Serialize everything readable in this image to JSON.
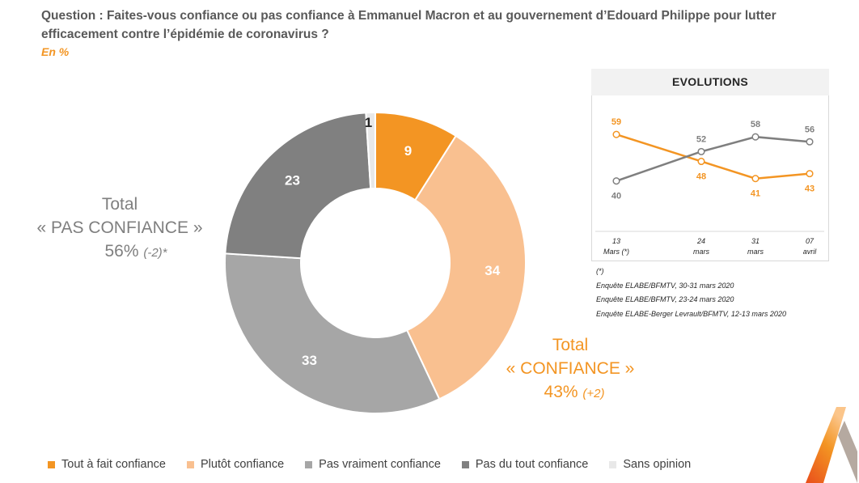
{
  "header": {
    "question": "Question : Faites-vous confiance ou pas confiance à Emmanuel Macron et au gouvernement d’Edouard Philippe pour lutter efficacement contre l’épidémie de coronavirus ?",
    "unit": "En %"
  },
  "totals": {
    "pas_confiance": {
      "line1": "Total",
      "line2": "« PAS CONFIANCE »",
      "pct": "56%",
      "change": "(-2)*"
    },
    "confiance": {
      "line1": "Total",
      "line2": "« CONFIANCE »",
      "pct": "43%",
      "change": "(+2)"
    }
  },
  "evolutions": {
    "title": "EVOLUTIONS",
    "notes": [
      "(*)",
      "Enquête ELABE/BFMTV, 30-31 mars 2020",
      "Enquête ELABE/BFMTV, 23-24 mars 2020",
      "Enquête ELABE-Berger Levrault/BFMTV, 12-13 mars 2020"
    ]
  },
  "legend": [
    {
      "label": "Tout à fait confiance",
      "color": "#f39523"
    },
    {
      "label": "Plutôt confiance",
      "color": "#f9c090"
    },
    {
      "label": "Pas vraiment confiance",
      "color": "#a6a6a6"
    },
    {
      "label": "Pas du tout confiance",
      "color": "#808080"
    },
    {
      "label": "Sans opinion",
      "color": "#e8e8e8"
    }
  ],
  "chart_data": [
    {
      "type": "pie",
      "subtype": "donut",
      "categories": [
        "Tout à fait confiance",
        "Plutôt confiance",
        "Pas vraiment confiance",
        "Pas du tout confiance",
        "Sans opinion"
      ],
      "values": [
        9,
        34,
        33,
        23,
        1
      ],
      "colors": [
        "#f39523",
        "#f9c090",
        "#a6a6a6",
        "#808080",
        "#e8e8e8"
      ],
      "label_colors": [
        "#ffffff",
        "#ffffff",
        "#ffffff",
        "#ffffff",
        "#262626"
      ]
    },
    {
      "type": "line",
      "title": "EVOLUTIONS",
      "categories": [
        [
          "13",
          "Mars (*)"
        ],
        [
          "24",
          "mars"
        ],
        [
          "31",
          "mars"
        ],
        [
          "07",
          "avril"
        ]
      ],
      "series": [
        {
          "values": [
            59,
            48,
            41,
            43
          ],
          "color": "#f39523"
        },
        {
          "values": [
            40,
            52,
            58,
            56
          ],
          "color": "#7f7f7f"
        }
      ],
      "ylim": [
        30,
        65
      ],
      "grid": false
    }
  ]
}
